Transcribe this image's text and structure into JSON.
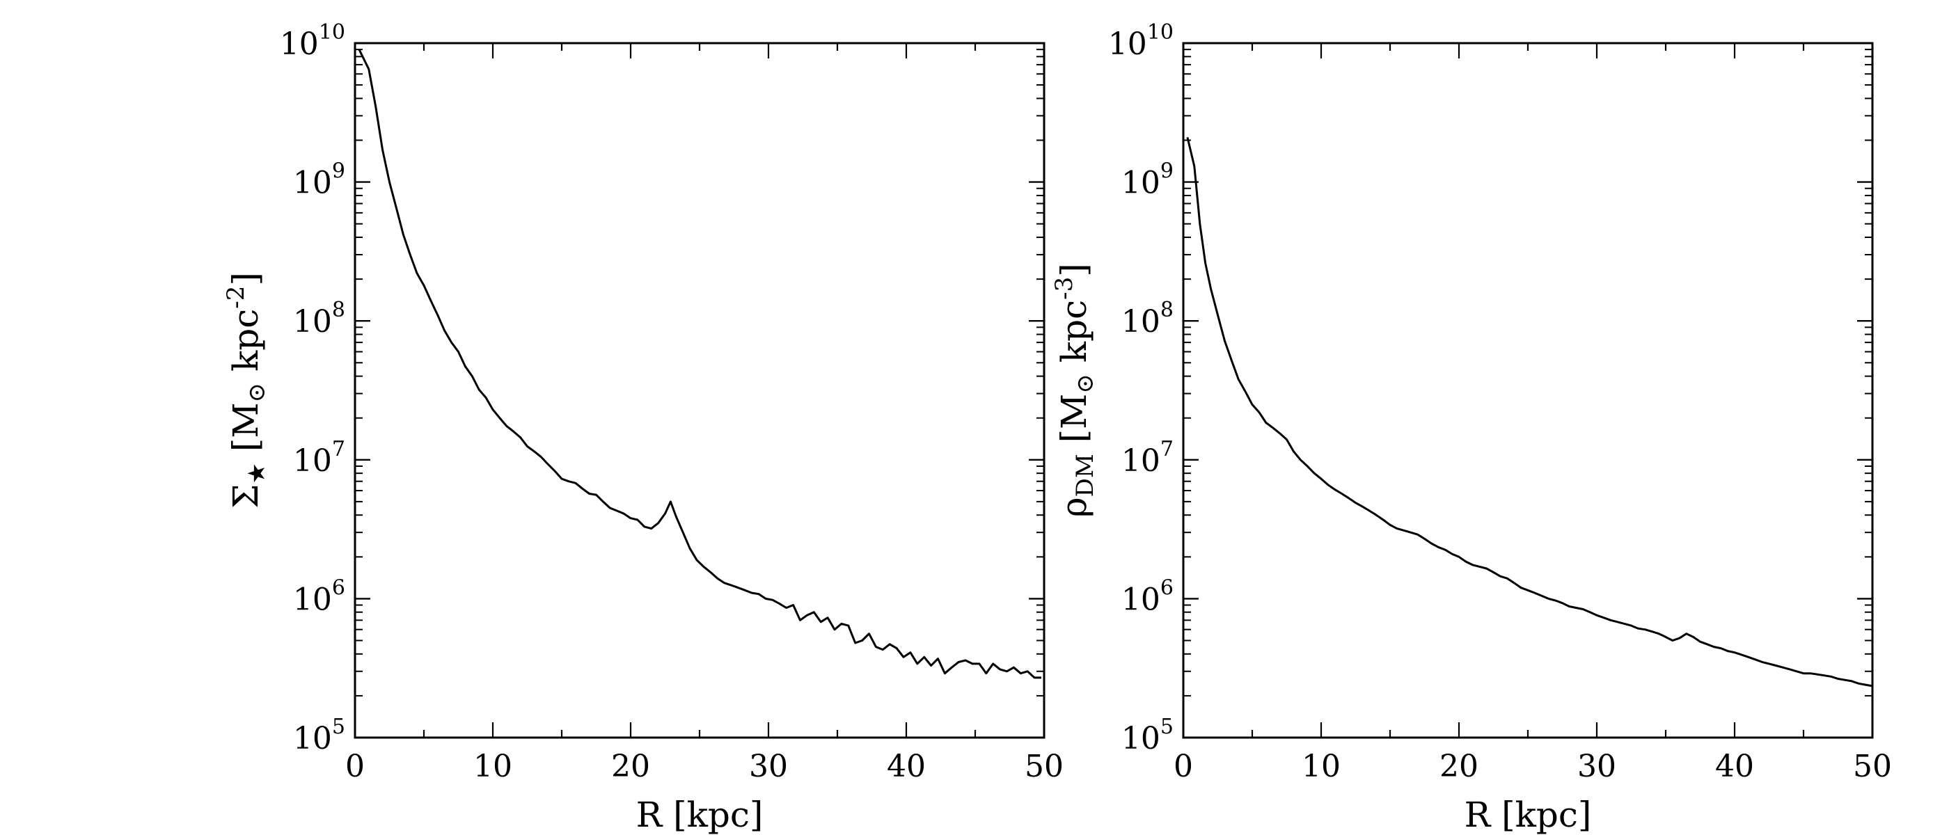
{
  "chart_data": [
    {
      "type": "line",
      "xlabel": "R [kpc]",
      "ylabel": {
        "main": "Σ",
        "sub": "★",
        "unit_prefix": " [M",
        "sun": "⊙",
        "unit_mid": " kpc",
        "exp": "-2",
        "unit_suffix": "]"
      },
      "xlim": [
        0,
        50
      ],
      "ylim": [
        100000,
        10000000000
      ],
      "yscale": "log",
      "xticks": [
        0,
        10,
        20,
        30,
        40,
        50
      ],
      "yticks": [
        {
          "base": "10",
          "exp": "5"
        },
        {
          "base": "10",
          "exp": "6"
        },
        {
          "base": "10",
          "exp": "7"
        },
        {
          "base": "10",
          "exp": "8"
        },
        {
          "base": "10",
          "exp": "9"
        },
        {
          "base": "10",
          "exp": "10"
        }
      ],
      "grid": false,
      "series": [
        {
          "color": "#000000",
          "x": [
            0.3,
            1.0,
            1.5,
            2.0,
            2.5,
            3.0,
            3.5,
            4.0,
            4.5,
            5.0,
            5.5,
            6.0,
            6.5,
            7.0,
            7.5,
            8.0,
            8.5,
            9.0,
            9.5,
            10.0,
            10.5,
            11.0,
            11.5,
            12.0,
            12.5,
            13.0,
            13.5,
            14.0,
            14.5,
            15.0,
            15.5,
            16.0,
            16.5,
            17.0,
            17.5,
            18.0,
            18.5,
            19.0,
            19.5,
            20.0,
            20.5,
            21.0,
            21.5,
            22.0,
            22.5,
            22.9,
            23.3,
            23.8,
            24.3,
            24.8,
            25.3,
            25.8,
            26.3,
            26.8,
            27.3,
            27.8,
            28.3,
            28.8,
            29.3,
            29.8,
            30.3,
            30.8,
            31.3,
            31.8,
            32.3,
            32.8,
            33.3,
            33.8,
            34.3,
            34.8,
            35.3,
            35.8,
            36.3,
            36.8,
            37.3,
            37.8,
            38.3,
            38.8,
            39.3,
            39.8,
            40.3,
            40.8,
            41.3,
            41.8,
            42.3,
            42.8,
            43.3,
            43.8,
            44.3,
            44.8,
            45.3,
            45.8,
            46.3,
            46.8,
            47.3,
            47.8,
            48.3,
            48.8,
            49.3,
            49.8
          ],
          "y": [
            9000000000,
            6500000000,
            3500000000,
            1700000000,
            1000000000,
            650000000,
            420000000,
            300000000,
            220000000,
            180000000,
            140000000,
            110000000,
            85000000,
            70000000,
            60000000,
            47000000,
            40000000,
            32000000,
            28000000,
            23000000,
            20000000,
            17500000,
            16000000,
            14500000,
            12500000,
            11500000,
            10500000,
            9300000,
            8300000,
            7300000,
            7000000,
            6800000,
            6200000,
            5700000,
            5600000,
            5000000,
            4500000,
            4300000,
            4100000,
            3800000,
            3700000,
            3300000,
            3200000,
            3500000,
            4100000,
            5000000,
            3900000,
            3000000,
            2300000,
            1900000,
            1700000,
            1550000,
            1400000,
            1300000,
            1250000,
            1200000,
            1150000,
            1100000,
            1080000,
            1000000,
            980000,
            920000,
            860000,
            900000,
            700000,
            760000,
            800000,
            680000,
            730000,
            600000,
            660000,
            640000,
            480000,
            500000,
            560000,
            450000,
            430000,
            470000,
            440000,
            380000,
            410000,
            340000,
            380000,
            330000,
            370000,
            290000,
            320000,
            350000,
            360000,
            340000,
            340000,
            290000,
            340000,
            310000,
            300000,
            320000,
            290000,
            300000,
            270000,
            270000
          ]
        }
      ]
    },
    {
      "type": "line",
      "xlabel": "R [kpc]",
      "ylabel": {
        "main": "ρ",
        "sub": "DM",
        "unit_prefix": " [M",
        "sun": "⊙",
        "unit_mid": " kpc",
        "exp": "-3",
        "unit_suffix": "]"
      },
      "xlim": [
        0,
        50
      ],
      "ylim": [
        100000,
        10000000000
      ],
      "yscale": "log",
      "xticks": [
        0,
        10,
        20,
        30,
        40,
        50
      ],
      "yticks": [
        {
          "base": "10",
          "exp": "5"
        },
        {
          "base": "10",
          "exp": "6"
        },
        {
          "base": "10",
          "exp": "7"
        },
        {
          "base": "10",
          "exp": "8"
        },
        {
          "base": "10",
          "exp": "9"
        },
        {
          "base": "10",
          "exp": "10"
        }
      ],
      "grid": false,
      "series": [
        {
          "color": "#000000",
          "x": [
            0.3,
            0.8,
            1.2,
            1.6,
            2.0,
            2.5,
            3.0,
            3.5,
            4.0,
            4.5,
            5.0,
            5.5,
            6.0,
            6.5,
            7.0,
            7.5,
            8.0,
            8.5,
            9.0,
            9.5,
            10.0,
            10.5,
            11.0,
            11.5,
            12.0,
            12.5,
            13.0,
            13.5,
            14.0,
            14.5,
            15.0,
            15.5,
            16.0,
            16.5,
            17.0,
            17.5,
            18.0,
            18.5,
            19.0,
            19.5,
            20.0,
            20.5,
            21.0,
            21.5,
            22.0,
            22.5,
            23.0,
            23.5,
            24.0,
            24.5,
            25.0,
            25.5,
            26.0,
            26.5,
            27.0,
            27.5,
            28.0,
            28.5,
            29.0,
            29.5,
            30.0,
            30.5,
            31.0,
            31.5,
            32.0,
            32.5,
            33.0,
            33.5,
            34.0,
            34.5,
            35.0,
            35.5,
            36.0,
            36.5,
            37.0,
            37.5,
            38.0,
            38.5,
            39.0,
            39.5,
            40.0,
            40.5,
            41.0,
            41.5,
            42.0,
            42.5,
            43.0,
            43.5,
            44.0,
            44.5,
            45.0,
            45.5,
            46.0,
            46.5,
            47.0,
            47.5,
            48.0,
            48.5,
            49.0,
            49.5,
            50.0
          ],
          "y": [
            2100000000,
            1300000000,
            500000000,
            260000000,
            170000000,
            110000000,
            72000000,
            52000000,
            38000000,
            31000000,
            25000000,
            22000000,
            18500000,
            17000000,
            15500000,
            14000000,
            11500000,
            10000000,
            9000000,
            8000000,
            7300000,
            6600000,
            6100000,
            5700000,
            5300000,
            4900000,
            4600000,
            4300000,
            4000000,
            3700000,
            3400000,
            3200000,
            3100000,
            3000000,
            2900000,
            2700000,
            2500000,
            2350000,
            2250000,
            2100000,
            2000000,
            1850000,
            1750000,
            1700000,
            1650000,
            1550000,
            1450000,
            1400000,
            1300000,
            1200000,
            1150000,
            1100000,
            1050000,
            1000000,
            970000,
            930000,
            880000,
            860000,
            840000,
            800000,
            760000,
            730000,
            700000,
            680000,
            660000,
            640000,
            610000,
            600000,
            580000,
            560000,
            530000,
            500000,
            520000,
            560000,
            530000,
            490000,
            470000,
            450000,
            440000,
            420000,
            410000,
            395000,
            380000,
            365000,
            350000,
            340000,
            330000,
            320000,
            310000,
            300000,
            290000,
            290000,
            285000,
            280000,
            275000,
            265000,
            260000,
            255000,
            245000,
            240000,
            235000
          ]
        }
      ]
    }
  ]
}
